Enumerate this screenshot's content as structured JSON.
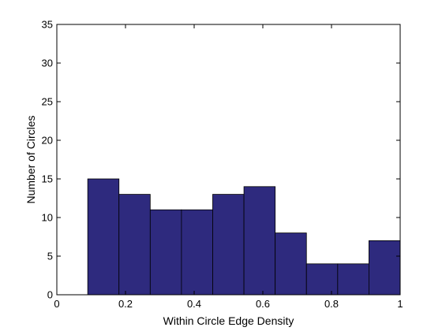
{
  "chart_data": {
    "type": "bar",
    "title": "",
    "xlabel": "Within Circle Edge Density",
    "ylabel": "Number of Circles",
    "xlim": [
      0,
      1
    ],
    "ylim": [
      0,
      35
    ],
    "x_ticks": [
      0,
      0.2,
      0.4,
      0.6,
      0.8,
      1
    ],
    "x_tick_labels": [
      "0",
      "0.2",
      "0.4",
      "0.6",
      "0.8",
      "1"
    ],
    "y_ticks": [
      0,
      5,
      10,
      15,
      20,
      25,
      30,
      35
    ],
    "y_tick_labels": [
      "0",
      "5",
      "10",
      "15",
      "20",
      "25",
      "30",
      "35"
    ],
    "bin_edges": [
      0.09,
      0.181,
      0.272,
      0.363,
      0.454,
      0.545,
      0.636,
      0.727,
      0.818,
      0.909,
      1.0
    ],
    "values": [
      15,
      13,
      11,
      11,
      13,
      14,
      8,
      4,
      4,
      7
    ],
    "bar_color": "#2e2a7e",
    "edge_color": "#000000",
    "grid": false,
    "legend": "none"
  }
}
